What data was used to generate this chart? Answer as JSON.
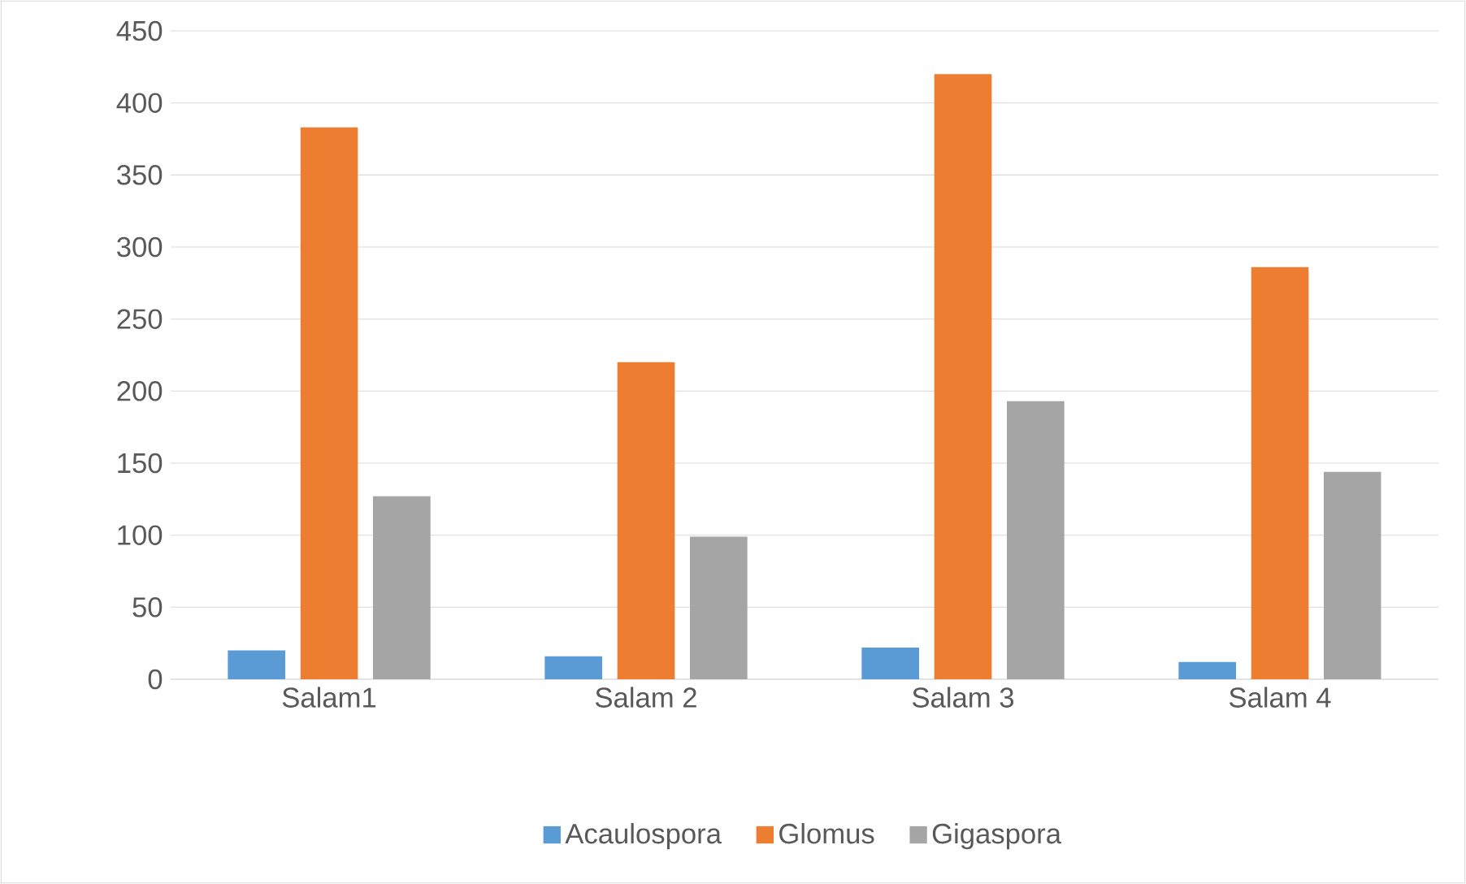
{
  "chart_data": {
    "type": "bar",
    "categories": [
      "Salam1",
      "Salam 2",
      "Salam 3",
      "Salam 4"
    ],
    "series": [
      {
        "name": "Acaulospora",
        "color": "#5b9bd5",
        "values": [
          20,
          16,
          22,
          12
        ]
      },
      {
        "name": "Glomus",
        "color": "#ed7d31",
        "values": [
          383,
          220,
          420,
          286
        ]
      },
      {
        "name": "Gigaspora",
        "color": "#a5a5a5",
        "values": [
          127,
          99,
          193,
          144
        ]
      }
    ],
    "ylim": [
      0,
      450
    ],
    "yticks": [
      0,
      50,
      100,
      150,
      200,
      250,
      300,
      350,
      400,
      450
    ],
    "grid": "y",
    "legend": "bottom"
  }
}
